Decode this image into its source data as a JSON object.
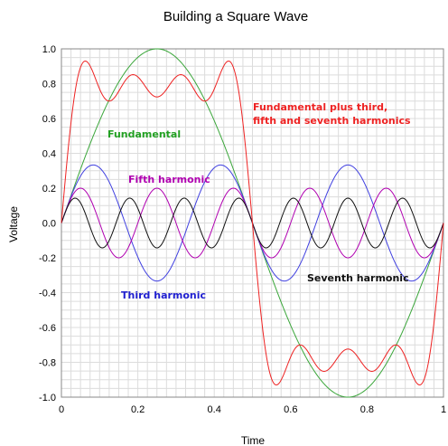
{
  "chart_data": {
    "type": "line",
    "title": "Building a Square Wave",
    "xlabel": "Time",
    "ylabel": "Voltage",
    "xlim": [
      0,
      1
    ],
    "ylim": [
      -1.0,
      1.0
    ],
    "xticks": [
      "0",
      "0.2",
      "0.4",
      "0.6",
      "0.8",
      "1"
    ],
    "yticks": [
      "1.0",
      "0.8",
      "0.6",
      "0.4",
      "0.2",
      "0.0",
      "-0.2",
      "-0.4",
      "-0.6",
      "-0.8",
      "-1.0"
    ],
    "grid": true,
    "function": "sine",
    "x_sample_count": 400,
    "series": [
      {
        "color": "#3aa63a",
        "harmonic": 1,
        "amplitude": 1.0
      },
      {
        "color": "#4040e0",
        "harmonic": 3,
        "amplitude": 0.3333
      },
      {
        "color": "#b000b0",
        "harmonic": 5,
        "amplitude": 0.2
      },
      {
        "color": "#111111",
        "harmonic": 7,
        "amplitude": 0.1429
      },
      {
        "color": "#ee2222",
        "harmonics": [
          1,
          3,
          5,
          7
        ],
        "amplitudes": [
          1.0,
          0.3333,
          0.2,
          0.1429
        ]
      }
    ],
    "annotations": {
      "fundamental": {
        "text": "Fundamental",
        "color": "#22a022"
      },
      "fifth": {
        "text": "Fifth harmonic",
        "color": "#b000b0"
      },
      "third": {
        "text": "Third harmonic",
        "color": "#2020d0"
      },
      "seventh": {
        "text": "Seventh harmonic",
        "color": "#111111"
      },
      "sum_line1": {
        "text": "Fundamental plus third,",
        "color": "#ee2222"
      },
      "sum_line2": {
        "text": "fifth and seventh harmonics",
        "color": "#ee2222"
      }
    }
  }
}
